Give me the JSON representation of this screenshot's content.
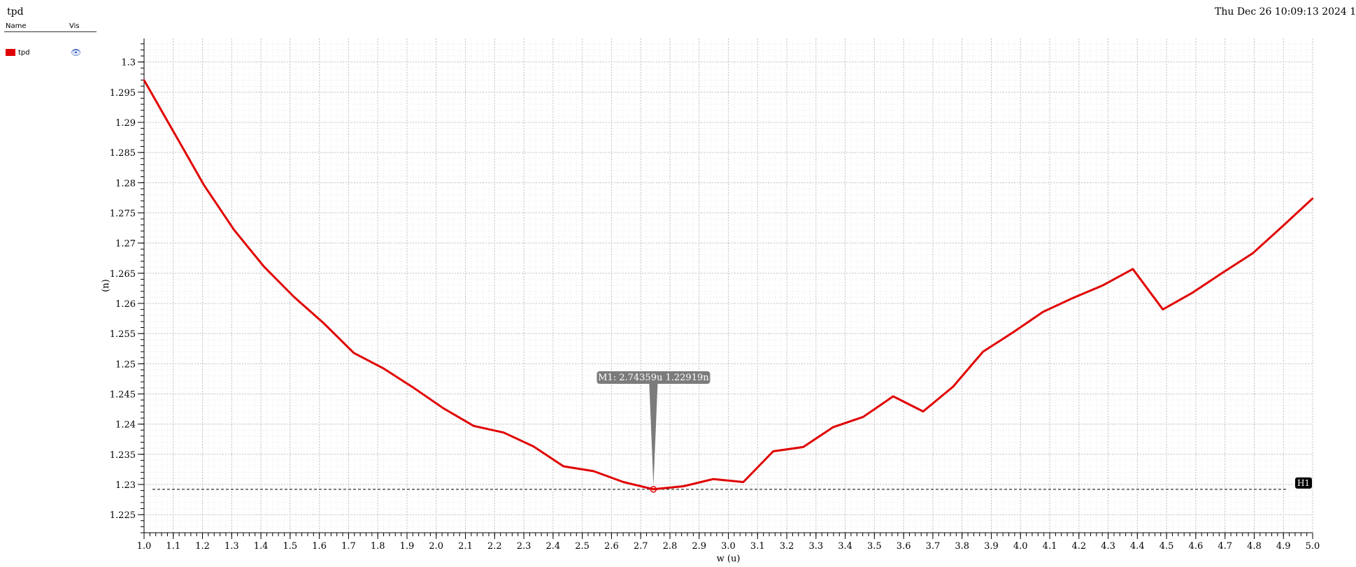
{
  "window": {
    "title": "tpd",
    "datestamp": "Thu Dec 26 10:09:13 2024   1"
  },
  "legend": {
    "col_name": "Name",
    "col_vis": "Vis",
    "items": [
      {
        "name": "tpd",
        "color": "#e00000",
        "visible_icon": "eye-icon"
      }
    ]
  },
  "chart_data": {
    "type": "line",
    "xlabel": "w (u)",
    "ylabel": "(n)",
    "xlim": [
      1.0,
      5.0
    ],
    "ylim": [
      1.222,
      1.3039
    ],
    "grid": true,
    "x_ticks": [
      "1.0",
      "1.1",
      "1.2",
      "1.3",
      "1.4",
      "1.5",
      "1.6",
      "1.7",
      "1.8",
      "1.9",
      "2.0",
      "2.1",
      "2.2",
      "2.3",
      "2.4",
      "2.5",
      "2.6",
      "2.7",
      "2.8",
      "2.9",
      "3.0",
      "3.1",
      "3.2",
      "3.3",
      "3.4",
      "3.5",
      "3.6",
      "3.7",
      "3.8",
      "3.9",
      "4.0",
      "4.1",
      "4.2",
      "4.3",
      "4.4",
      "4.5",
      "4.6",
      "4.7",
      "4.8",
      "4.9",
      "5.0"
    ],
    "y_ticks": [
      "1.225",
      "1.23",
      "1.235",
      "1.24",
      "1.245",
      "1.25",
      "1.255",
      "1.26",
      "1.265",
      "1.27",
      "1.275",
      "1.28",
      "1.285",
      "1.29",
      "1.295",
      "1.3"
    ],
    "series": [
      {
        "name": "tpd",
        "color": "#e00000",
        "x": [
          1.0,
          1.1026,
          1.2051,
          1.3077,
          1.4103,
          1.5128,
          1.6154,
          1.7179,
          1.8205,
          1.9231,
          2.0256,
          2.1282,
          2.2308,
          2.3333,
          2.4359,
          2.5385,
          2.641,
          2.7436,
          2.8462,
          2.9487,
          3.0513,
          3.1538,
          3.2564,
          3.359,
          3.4615,
          3.5641,
          3.6667,
          3.7692,
          3.8718,
          3.9744,
          4.0769,
          4.1795,
          4.2821,
          4.3846,
          4.4872,
          4.5897,
          4.6923,
          4.7949,
          4.8974,
          5.0
        ],
        "y": [
          1.297,
          1.2883,
          1.2796,
          1.2722,
          1.2661,
          1.2611,
          1.2567,
          1.2518,
          1.2492,
          1.246,
          1.2426,
          1.2397,
          1.2386,
          1.2363,
          1.233,
          1.2322,
          1.2304,
          1.2292,
          1.2297,
          1.2309,
          1.2304,
          1.2355,
          1.2362,
          1.2395,
          1.2412,
          1.2446,
          1.2421,
          1.2462,
          1.252,
          1.2552,
          1.2586,
          1.2609,
          1.263,
          1.2657,
          1.259,
          1.2618,
          1.2651,
          1.2683,
          1.2728,
          1.2774
        ]
      }
    ],
    "marker": {
      "label": "M1: 2.74359u 1.22919n",
      "x": 2.74359,
      "y": 1.22919
    },
    "hline": {
      "label": "H1",
      "y": 1.22919
    }
  }
}
